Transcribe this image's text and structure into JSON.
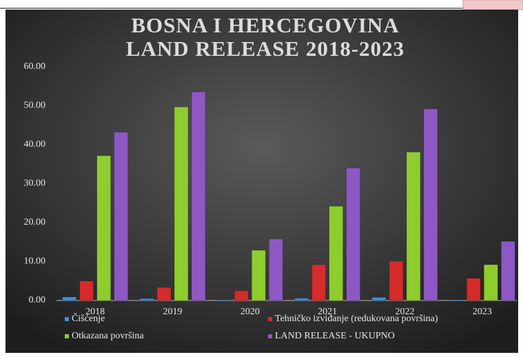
{
  "chart_data": {
    "type": "bar",
    "title": [
      "BOSNA I HERCEGOVINA",
      "LAND RELEASE 2018-2023"
    ],
    "categories": [
      "2018",
      "2019",
      "2020",
      "2021",
      "2022",
      "2023"
    ],
    "series": [
      {
        "name": "Čišćenje",
        "color": "#3b8fdb",
        "values": [
          0.9,
          0.5,
          0.2,
          0.6,
          0.8,
          0.2
        ]
      },
      {
        "name": "Tehničko izviđanje (redukovana površina)",
        "color": "#d62b2b",
        "values": [
          5.0,
          3.4,
          2.5,
          9.2,
          10.1,
          5.7
        ]
      },
      {
        "name": "Otkazana površina",
        "color": "#8fcc2e",
        "values": [
          37.2,
          49.7,
          12.9,
          24.2,
          38.1,
          9.2
        ]
      },
      {
        "name": "LAND RELEASE  - UKUPNO",
        "color": "#8e58c4",
        "values": [
          43.2,
          53.6,
          15.8,
          34.0,
          49.2,
          15.2
        ]
      }
    ],
    "ylim": [
      0,
      60
    ],
    "yticks": [
      {
        "value": 0,
        "label": "0.00"
      },
      {
        "value": 10,
        "label": "10.00"
      },
      {
        "value": 20,
        "label": "20.00"
      },
      {
        "value": 30,
        "label": "30.00"
      },
      {
        "value": 40,
        "label": "40.00"
      },
      {
        "value": 50,
        "label": "50.00"
      },
      {
        "value": 60,
        "label": "60.00"
      }
    ],
    "grid": false
  }
}
